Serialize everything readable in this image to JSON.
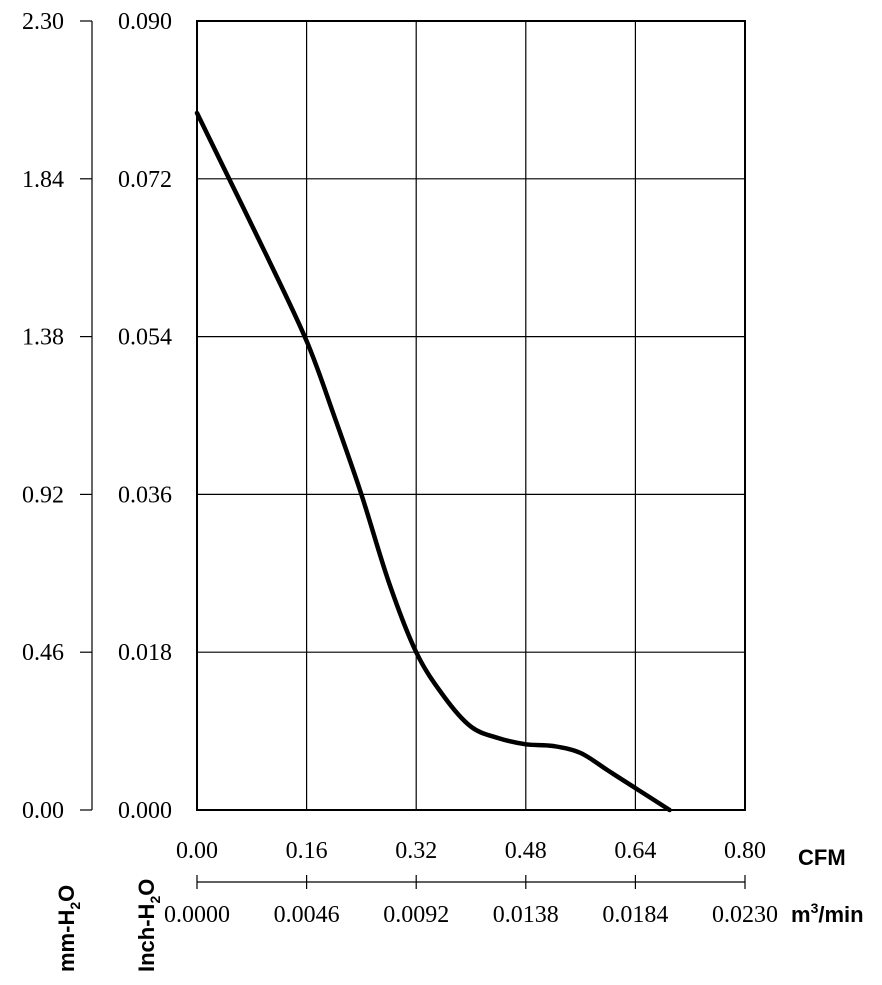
{
  "chart_data": {
    "type": "line",
    "title": "",
    "grid": true,
    "x_axes": [
      {
        "label": "CFM",
        "ticks": [
          "0.00",
          "0.16",
          "0.32",
          "0.48",
          "0.64",
          "0.80"
        ],
        "range": [
          0,
          0.8
        ]
      },
      {
        "label": "m³/min",
        "label_base": "m",
        "label_sup": "3",
        "label_rest": "/min",
        "ticks": [
          "0.0000",
          "0.0046",
          "0.0092",
          "0.0138",
          "0.0184",
          "0.0230"
        ],
        "range": [
          0,
          0.023
        ]
      }
    ],
    "y_axes": [
      {
        "label": "mm-H2O",
        "label_base": "mm-H",
        "label_sub": "2",
        "label_rest": "O",
        "ticks": [
          "0.00",
          "0.46",
          "0.92",
          "1.38",
          "1.84",
          "2.30"
        ],
        "range": [
          0,
          2.3
        ]
      },
      {
        "label": "Inch-H2O",
        "label_base": "Inch-H",
        "label_sub": "2",
        "label_rest": "O",
        "ticks": [
          "0.000",
          "0.018",
          "0.036",
          "0.054",
          "0.072",
          "0.090"
        ],
        "range": [
          0,
          0.09
        ]
      }
    ],
    "series": [
      {
        "x": [
          0.0,
          0.05,
          0.1,
          0.16,
          0.2,
          0.24,
          0.28,
          0.32,
          0.36,
          0.4,
          0.44,
          0.48,
          0.52,
          0.56,
          0.6,
          0.64,
          0.69
        ],
        "y": [
          0.0795,
          0.0715,
          0.0635,
          0.0535,
          0.045,
          0.036,
          0.026,
          0.018,
          0.013,
          0.0095,
          0.0082,
          0.0075,
          0.0073,
          0.0065,
          0.0045,
          0.0025,
          0.0
        ]
      }
    ]
  }
}
